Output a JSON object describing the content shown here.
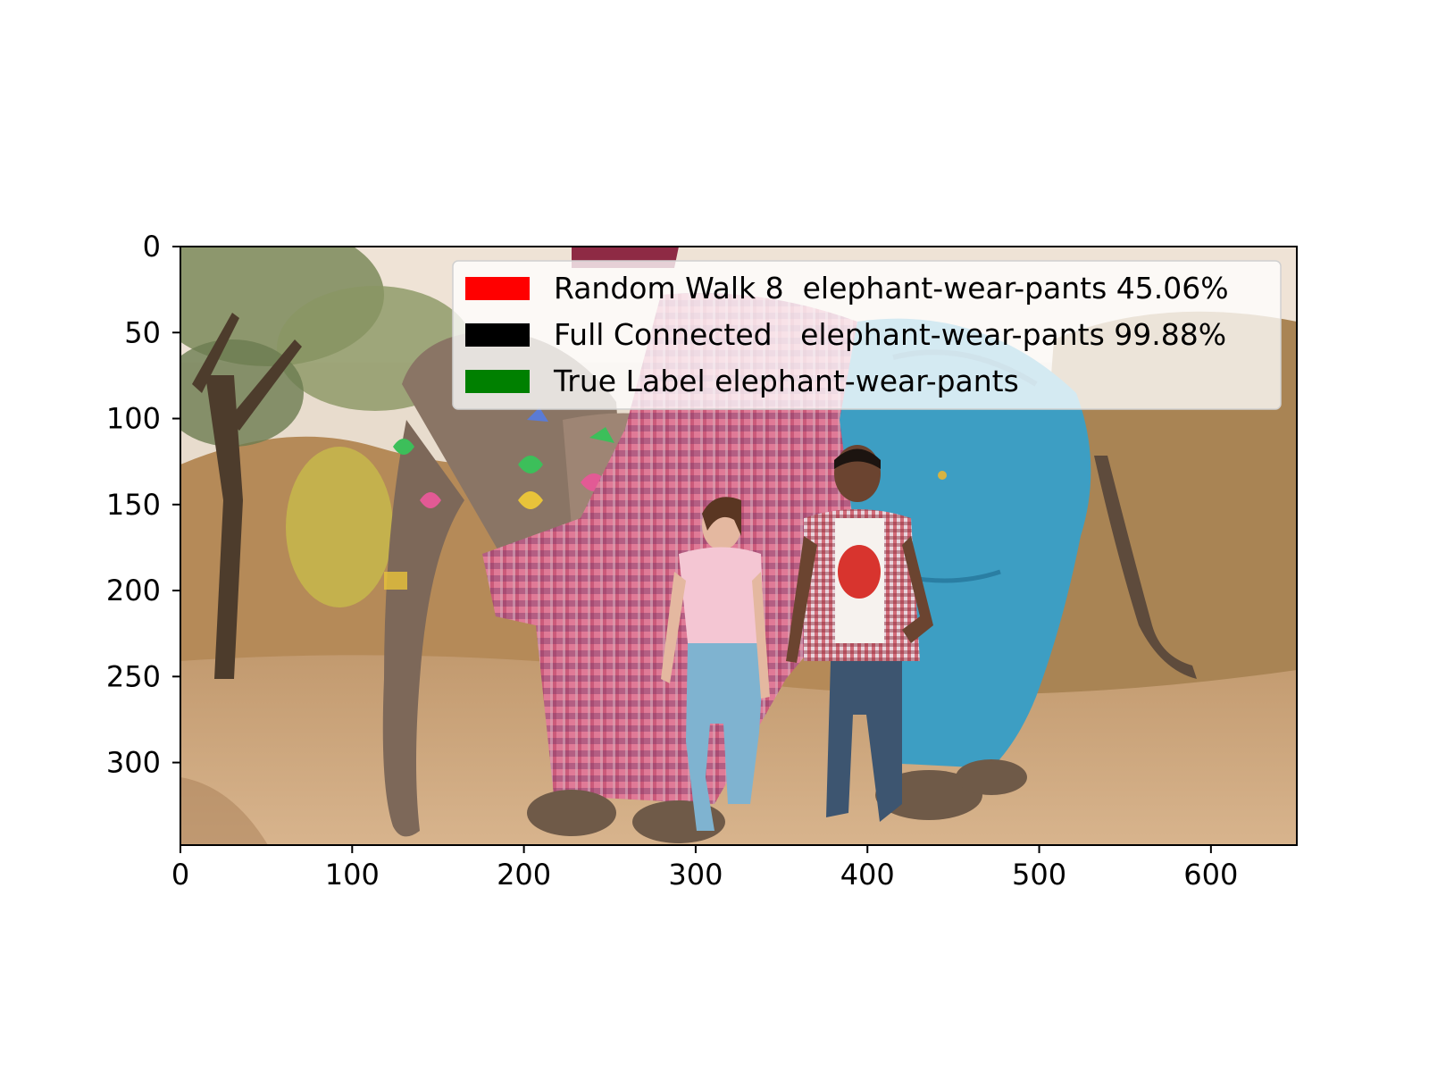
{
  "image": {
    "description": "",
    "x_range": [
      0,
      650
    ],
    "y_range": [
      0,
      348
    ],
    "y_direction": "top-down"
  },
  "axes": {
    "x_ticks": [
      "0",
      "100",
      "200",
      "300",
      "400",
      "500",
      "600"
    ],
    "y_ticks": [
      "0",
      "50",
      "100",
      "150",
      "200",
      "250",
      "300"
    ],
    "x_tick_values": [
      0,
      100,
      200,
      300,
      400,
      500,
      600
    ],
    "y_tick_values": [
      0,
      50,
      100,
      150,
      200,
      250,
      300
    ]
  },
  "legend": {
    "placement": "upper-right",
    "entries": [
      {
        "label": "Random Walk 8  elephant-wear-pants 45.06%",
        "color": "#ff0000"
      },
      {
        "label": "Full Connected   elephant-wear-pants 99.88%",
        "color": "#000000"
      },
      {
        "label": "True Label elephant-wear-pants",
        "color": "#008000"
      }
    ]
  },
  "palette": {
    "sky": "#e9ddcf",
    "ground": "#c79a6c",
    "grass": "#b58a58",
    "tree": "#7b8a5a",
    "elephant_skin": "#8a7565",
    "pink_check": "#d0607e",
    "blue_pants": "#3d9ec3",
    "woman_shirt": "#f4c6d3",
    "jeans": "#7fb3d0",
    "man_jeans": "#3d5570",
    "man_shirt": "#c8404f"
  }
}
